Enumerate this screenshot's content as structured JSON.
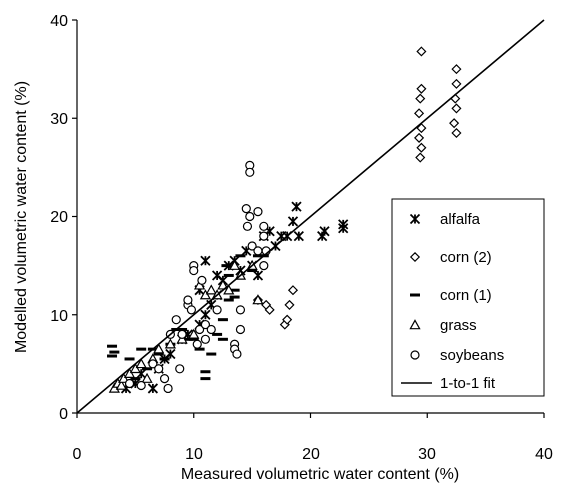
{
  "chart_data": {
    "type": "scatter",
    "title": "",
    "xlabel": "Measured volumetric water content (%)",
    "ylabel": "Modelled volumetric water content (%)",
    "xlim": [
      0,
      40
    ],
    "ylim": [
      0,
      40
    ],
    "x_ticks": [
      "0",
      "10",
      "20",
      "30",
      "40"
    ],
    "y_ticks": [
      "0",
      "10",
      "20",
      "30",
      "40"
    ],
    "grid": false,
    "legend_position": "right",
    "reference_line": {
      "name": "1-to-1 fit",
      "x": [
        0,
        40
      ],
      "y": [
        0,
        40
      ]
    },
    "series": [
      {
        "name": "alfalfa",
        "marker": "asterisk",
        "points": [
          [
            4.2,
            2.5
          ],
          [
            5.0,
            3.0
          ],
          [
            5.5,
            4.0
          ],
          [
            6.5,
            2.5
          ],
          [
            7.0,
            4.5
          ],
          [
            7.5,
            5.5
          ],
          [
            8.0,
            6.0
          ],
          [
            9.0,
            7.5
          ],
          [
            9.5,
            8.0
          ],
          [
            10.5,
            9.0
          ],
          [
            11.0,
            10.0
          ],
          [
            11.5,
            11.0
          ],
          [
            12.0,
            12.0
          ],
          [
            12.5,
            13.5
          ],
          [
            13.0,
            15.0
          ],
          [
            13.5,
            15.5
          ],
          [
            14.0,
            14.5
          ],
          [
            14.5,
            16.5
          ],
          [
            15.0,
            15.0
          ],
          [
            15.5,
            14.0
          ],
          [
            16.0,
            18.0
          ],
          [
            16.5,
            18.5
          ],
          [
            17.0,
            17.0
          ],
          [
            17.5,
            18.0
          ],
          [
            18.0,
            18.0
          ],
          [
            18.5,
            19.5
          ],
          [
            18.8,
            21.0
          ],
          [
            19.0,
            18.0
          ],
          [
            21.0,
            18.0
          ],
          [
            21.2,
            18.5
          ],
          [
            22.8,
            18.8
          ],
          [
            22.8,
            19.2
          ],
          [
            11.0,
            15.5
          ],
          [
            12.0,
            14.0
          ],
          [
            10.5,
            12.5
          ]
        ]
      },
      {
        "name": "corn (2)",
        "marker": "diamond",
        "points": [
          [
            15.5,
            11.5
          ],
          [
            16.2,
            11.0
          ],
          [
            16.5,
            10.5
          ],
          [
            17.8,
            9.0
          ],
          [
            18.0,
            9.5
          ],
          [
            18.2,
            11.0
          ],
          [
            18.5,
            12.5
          ],
          [
            29.5,
            36.8
          ],
          [
            29.5,
            33.0
          ],
          [
            29.4,
            32.0
          ],
          [
            29.3,
            30.5
          ],
          [
            29.5,
            29.0
          ],
          [
            29.3,
            28.0
          ],
          [
            29.5,
            27.0
          ],
          [
            29.4,
            26.0
          ],
          [
            32.5,
            35.0
          ],
          [
            32.5,
            33.5
          ],
          [
            32.4,
            32.0
          ],
          [
            32.5,
            31.0
          ],
          [
            32.3,
            29.5
          ],
          [
            32.5,
            28.5
          ]
        ]
      },
      {
        "name": "corn (1)",
        "marker": "dash",
        "points": [
          [
            3.0,
            6.8
          ],
          [
            3.2,
            6.2
          ],
          [
            3.0,
            5.8
          ],
          [
            4.5,
            5.5
          ],
          [
            5.5,
            6.5
          ],
          [
            6.5,
            6.5
          ],
          [
            7.0,
            6.0
          ],
          [
            7.5,
            5.5
          ],
          [
            8.0,
            7.0
          ],
          [
            8.5,
            8.5
          ],
          [
            9.0,
            8.5
          ],
          [
            9.5,
            7.5
          ],
          [
            10.0,
            7.5
          ],
          [
            10.5,
            6.5
          ],
          [
            11.0,
            4.2
          ],
          [
            11.0,
            3.5
          ],
          [
            11.5,
            6.0
          ],
          [
            12.0,
            8.0
          ],
          [
            12.5,
            7.5
          ],
          [
            12.5,
            9.5
          ],
          [
            13.0,
            11.5
          ],
          [
            13.5,
            11.8
          ],
          [
            13.0,
            14.0
          ],
          [
            12.8,
            15.0
          ],
          [
            13.5,
            12.5
          ],
          [
            14.0,
            16.0
          ],
          [
            15.0,
            14.5
          ],
          [
            15.5,
            16.0
          ],
          [
            16.0,
            16.0
          ],
          [
            6.0,
            4.5
          ],
          [
            5.0,
            3.5
          ]
        ]
      },
      {
        "name": "grass",
        "marker": "triangle",
        "points": [
          [
            3.2,
            2.5
          ],
          [
            3.5,
            3.0
          ],
          [
            3.8,
            2.8
          ],
          [
            4.0,
            3.5
          ],
          [
            4.5,
            4.0
          ],
          [
            5.0,
            4.5
          ],
          [
            5.5,
            5.0
          ],
          [
            6.0,
            3.5
          ],
          [
            6.5,
            5.5
          ],
          [
            7.0,
            6.5
          ],
          [
            8.0,
            7.0
          ],
          [
            9.0,
            7.5
          ],
          [
            10.0,
            8.0
          ],
          [
            10.5,
            13.0
          ],
          [
            11.0,
            12.0
          ],
          [
            11.5,
            12.5
          ],
          [
            12.0,
            12.0
          ],
          [
            12.5,
            13.0
          ],
          [
            13.0,
            12.5
          ],
          [
            13.5,
            15.0
          ],
          [
            14.0,
            14.0
          ],
          [
            15.0,
            15.0
          ],
          [
            15.5,
            11.5
          ]
        ]
      },
      {
        "name": "soybeans",
        "marker": "circle",
        "points": [
          [
            6.5,
            5.0
          ],
          [
            7.0,
            4.5
          ],
          [
            7.5,
            3.5
          ],
          [
            7.8,
            2.5
          ],
          [
            8.0,
            8.0
          ],
          [
            8.5,
            9.5
          ],
          [
            9.0,
            8.0
          ],
          [
            9.5,
            11.0
          ],
          [
            9.5,
            11.5
          ],
          [
            9.8,
            10.5
          ],
          [
            10.0,
            15.0
          ],
          [
            10.0,
            14.5
          ],
          [
            10.3,
            7.0
          ],
          [
            10.5,
            8.5
          ],
          [
            10.7,
            13.5
          ],
          [
            11.0,
            9.0
          ],
          [
            11.0,
            7.5
          ],
          [
            11.5,
            8.5
          ],
          [
            12.0,
            10.5
          ],
          [
            13.5,
            7.0
          ],
          [
            13.5,
            6.5
          ],
          [
            13.7,
            6.0
          ],
          [
            14.0,
            10.5
          ],
          [
            14.0,
            8.5
          ],
          [
            14.5,
            20.8
          ],
          [
            14.8,
            20.0
          ],
          [
            14.6,
            19.0
          ],
          [
            14.8,
            25.2
          ],
          [
            14.8,
            24.5
          ],
          [
            15.5,
            20.5
          ],
          [
            16.0,
            19.0
          ],
          [
            16.0,
            18.0
          ],
          [
            16.2,
            16.5
          ],
          [
            16.0,
            15.0
          ],
          [
            15.0,
            17.0
          ],
          [
            15.5,
            16.5
          ],
          [
            4.5,
            3.0
          ],
          [
            5.5,
            2.8
          ],
          [
            8.8,
            4.5
          ]
        ]
      }
    ]
  }
}
